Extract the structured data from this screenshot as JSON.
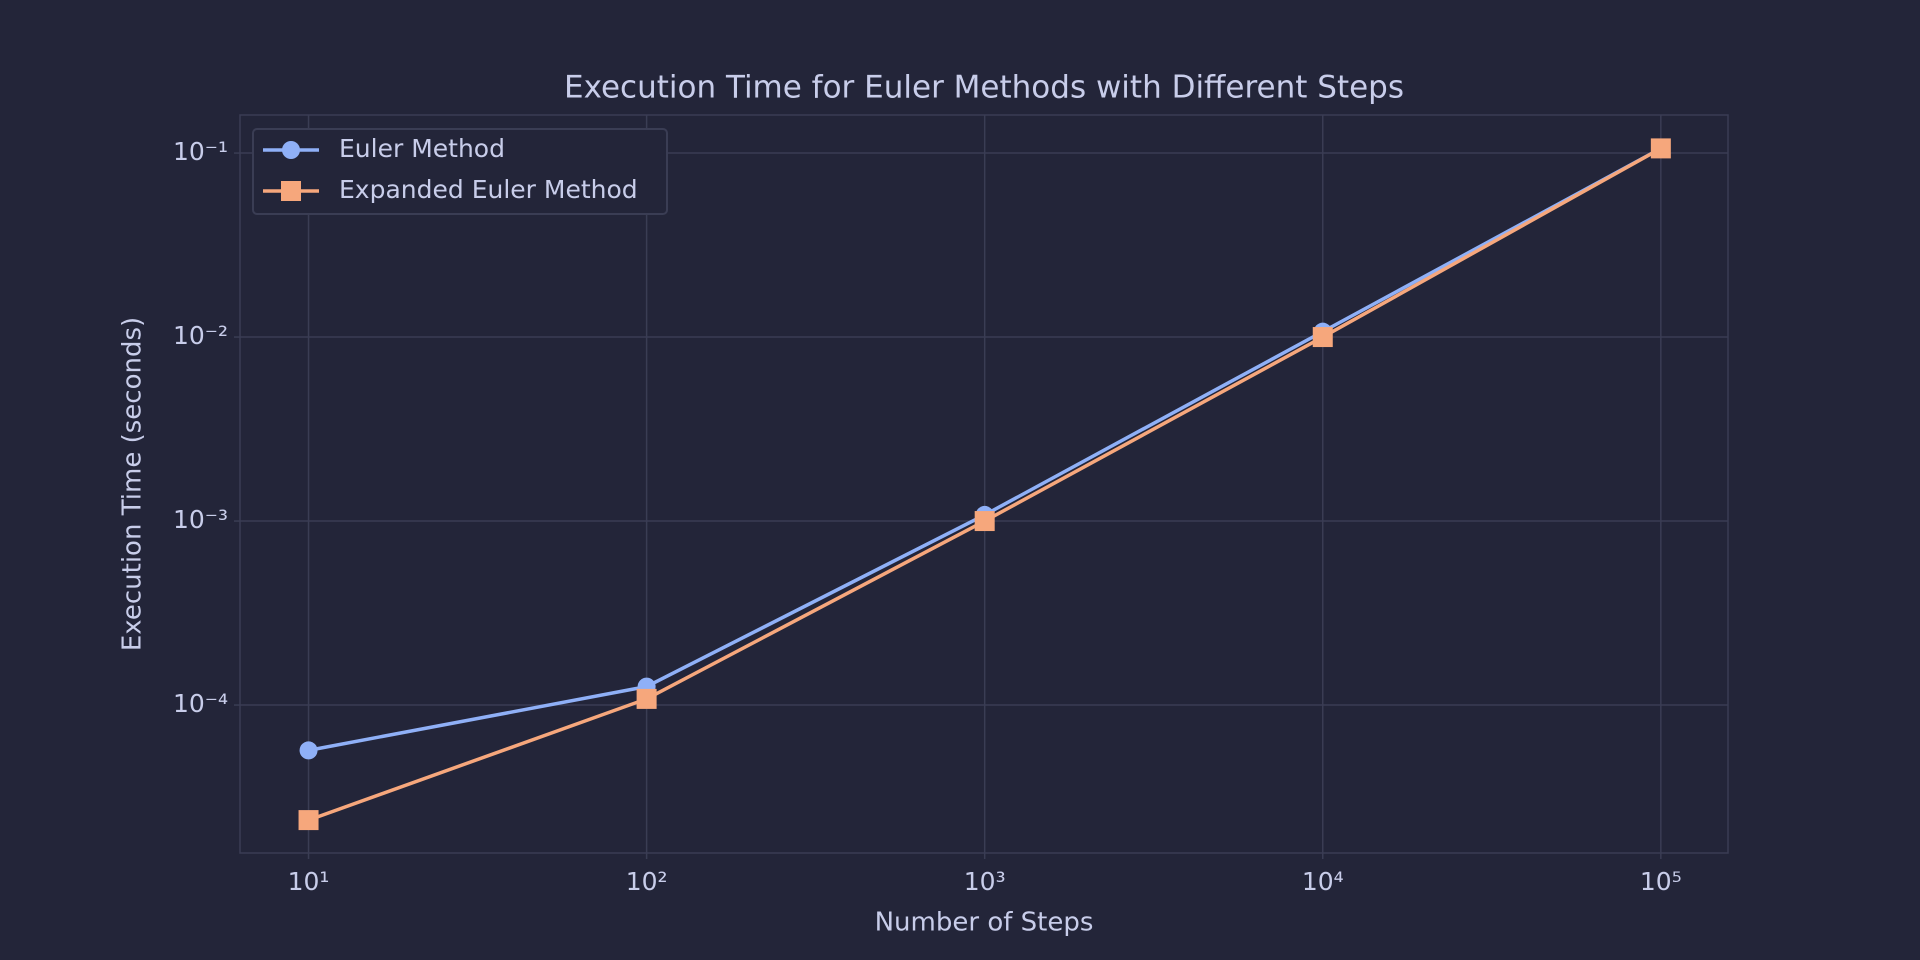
{
  "chart_data": {
    "type": "line",
    "title": "Execution Time for Euler Methods with Different Steps",
    "x_label": "Number of Steps",
    "y_label": "Execution Time (seconds)",
    "x": [
      10,
      100,
      1000,
      10000,
      100000
    ],
    "series": [
      {
        "name": "Euler Method",
        "color": "#8fb0f7",
        "marker": "circle",
        "values": [
          5.67e-05,
          0.000126,
          0.00108,
          0.0107,
          0.106
        ]
      },
      {
        "name": "Expanded Euler Method",
        "color": "#f6a77c",
        "marker": "square",
        "values": [
          2.37e-05,
          0.000108,
          0.001,
          0.01,
          0.106
        ]
      }
    ],
    "xscale": "log",
    "yscale": "log",
    "xlim": [
      6.27,
      158000
    ],
    "ylim": [
      1.57e-05,
      0.161
    ],
    "xticks": [
      {
        "value": 10,
        "label": "10¹"
      },
      {
        "value": 100,
        "label": "10²"
      },
      {
        "value": 1000,
        "label": "10³"
      },
      {
        "value": 10000,
        "label": "10⁴"
      },
      {
        "value": 100000,
        "label": "10⁵"
      }
    ],
    "yticks": [
      {
        "value": 0.0001,
        "label": "10⁻⁴"
      },
      {
        "value": 0.001,
        "label": "10⁻³"
      },
      {
        "value": 0.01,
        "label": "10⁻²"
      },
      {
        "value": 0.1,
        "label": "10⁻¹"
      }
    ],
    "grid": true,
    "legend": "upper left"
  }
}
